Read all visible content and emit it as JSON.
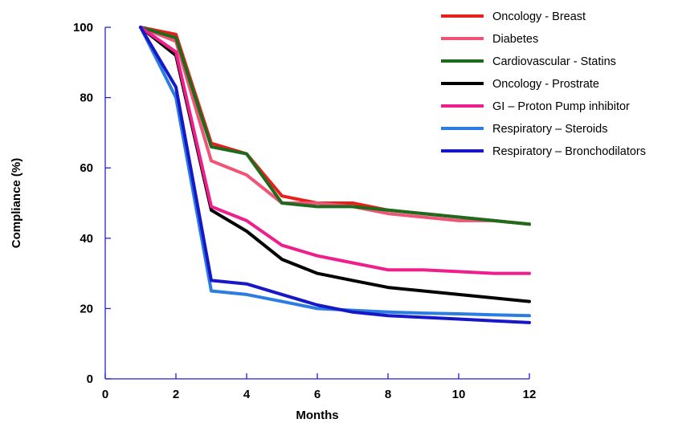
{
  "chart_data": {
    "type": "line",
    "title": "",
    "xlabel": "Months",
    "ylabel": "Compliance (%)",
    "xlim": [
      0,
      12
    ],
    "ylim": [
      0,
      100
    ],
    "x_ticks": [
      "0",
      "2",
      "4",
      "6",
      "8",
      "10",
      "12"
    ],
    "y_ticks": [
      "0",
      "20",
      "40",
      "60",
      "80",
      "100"
    ],
    "x_tick_values": [
      0,
      2,
      4,
      6,
      8,
      10,
      12
    ],
    "y_tick_values": [
      0,
      20,
      40,
      60,
      80,
      100
    ],
    "grid": false,
    "legend_position": "top-right",
    "x": [
      1,
      2,
      3,
      4,
      5,
      6,
      7,
      8,
      9,
      10,
      11,
      12
    ],
    "series": [
      {
        "name": "Oncology - Breast",
        "color": "#e8201c",
        "values": [
          100,
          98,
          67,
          64,
          52,
          50,
          50,
          48,
          47,
          46,
          45,
          44
        ]
      },
      {
        "name": "Diabetes",
        "color": "#ef5577",
        "values": [
          100,
          96,
          62,
          58,
          50,
          50,
          49,
          47,
          46,
          45,
          45,
          44
        ]
      },
      {
        "name": "Cardiovascular - Statins",
        "color": "#1d6b1d",
        "values": [
          100,
          97,
          66,
          64,
          50,
          49,
          49,
          48,
          47,
          46,
          45,
          44
        ]
      },
      {
        "name": "Oncology - Prostrate",
        "color": "#000000",
        "values": [
          100,
          92,
          48,
          42,
          34,
          30,
          28,
          26,
          25,
          24,
          23,
          22
        ]
      },
      {
        "name": "GI – Proton Pump inhibitor",
        "color": "#ee1e8c",
        "values": [
          100,
          93,
          49,
          45,
          38,
          35,
          33,
          31,
          31,
          30.5,
          30,
          30
        ]
      },
      {
        "name": "Respiratory – Steroids",
        "color": "#2b7de1",
        "values": [
          100,
          80,
          25,
          24,
          22,
          20,
          19.5,
          19,
          18.7,
          18.5,
          18.2,
          18
        ]
      },
      {
        "name": "Respiratory – Bronchodilators",
        "color": "#1717c8",
        "values": [
          100,
          83,
          28,
          27,
          24,
          21,
          19,
          18,
          17.5,
          17,
          16.5,
          16
        ]
      }
    ]
  }
}
